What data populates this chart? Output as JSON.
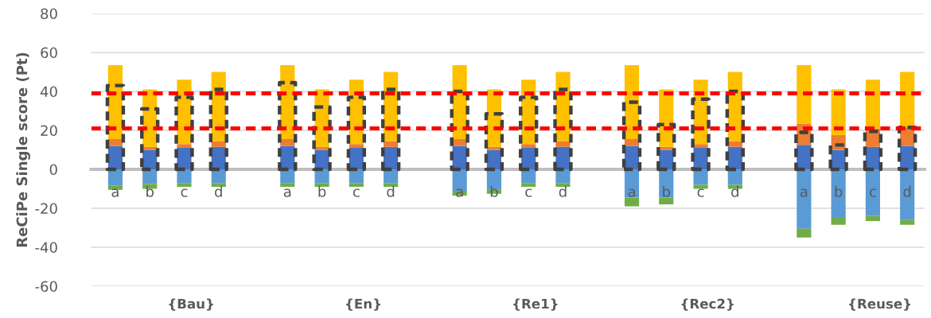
{
  "chart_data": {
    "type": "bar",
    "ylabel": "ReCiPe Single score (Pt)",
    "categories": [
      "a",
      "b",
      "c",
      "d",
      null,
      "a",
      "b",
      "c",
      "d",
      null,
      "a",
      "b",
      "c",
      "d",
      null,
      "a",
      "b",
      "c",
      "d",
      null,
      "a",
      "b",
      "c",
      "d"
    ],
    "series": [
      {
        "color": "#4472c4",
        "base": [
          0,
          0,
          0,
          0,
          null,
          0,
          0,
          0,
          0,
          null,
          0,
          0,
          0,
          0,
          null,
          0,
          0,
          0,
          0,
          null,
          0,
          0,
          0,
          0
        ],
        "values": [
          12,
          10,
          11,
          11.5,
          null,
          12,
          10,
          11,
          11.5,
          null,
          12,
          10,
          11,
          11.5,
          null,
          12,
          10,
          11,
          11.5,
          null,
          12.5,
          10,
          11.5,
          12
        ]
      },
      {
        "color": "#ed7d31",
        "base": [
          12,
          10,
          11,
          11.5,
          null,
          12,
          10,
          11,
          11.5,
          null,
          12,
          10,
          11,
          11.5,
          null,
          12,
          10,
          11,
          11.5,
          null,
          12.5,
          10,
          11.5,
          12
        ],
        "values": [
          3.5,
          1.5,
          2,
          3,
          null,
          3.5,
          1.5,
          2,
          3,
          null,
          3.5,
          1.5,
          2,
          3,
          null,
          3.5,
          1.5,
          2,
          3,
          null,
          11,
          7.5,
          9.5,
          9.5
        ]
      },
      {
        "color": "#ffc000",
        "base": [
          15.5,
          11.5,
          13,
          14.5,
          null,
          15.5,
          11.5,
          13,
          14.5,
          null,
          15.5,
          11.5,
          13,
          14.5,
          null,
          15.5,
          11.5,
          13,
          14.5,
          null,
          23.5,
          17.5,
          21,
          21.5
        ],
        "values": [
          38,
          29.5,
          33,
          35.5,
          null,
          38,
          29.5,
          33,
          35.5,
          null,
          38,
          29.5,
          33,
          35.5,
          null,
          38,
          29.5,
          33,
          35.5,
          null,
          30,
          23.5,
          25,
          28.5
        ]
      },
      {
        "color": "#5b9bd5",
        "base": [
          0,
          0,
          0,
          0,
          null,
          0,
          0,
          0,
          0,
          null,
          0,
          0,
          0,
          0,
          null,
          0,
          0,
          0,
          0,
          null,
          0,
          0,
          0,
          0
        ],
        "values": [
          -8.5,
          -7.5,
          -7,
          -7,
          null,
          -7,
          -7,
          -7,
          -7,
          null,
          -11,
          -10.5,
          -7,
          -7,
          null,
          -14.5,
          -14.5,
          -8,
          -8,
          null,
          -30.5,
          -24.5,
          -24,
          -26
        ]
      },
      {
        "color": "#70ad47",
        "base": [
          -8.5,
          -7.5,
          -7,
          -7,
          null,
          -7,
          -7,
          -7,
          -7,
          null,
          -11,
          -10.5,
          -7,
          -7,
          null,
          -14.5,
          -14.5,
          -8,
          -8,
          null,
          -30.5,
          -24.5,
          -24,
          -26
        ],
        "values": [
          -2,
          -2.5,
          -2,
          -2,
          null,
          -2,
          -2,
          -2,
          -2,
          null,
          -2.5,
          -2,
          -2,
          -2,
          null,
          -4.5,
          -3.5,
          -2,
          -2,
          null,
          -4.5,
          -4,
          -2.5,
          -2.5
        ]
      },
      {
        "color": "#404040",
        "line_style": "dashed",
        "base": [
          0,
          0,
          0,
          0,
          null,
          0,
          0,
          0,
          0,
          null,
          0,
          0,
          0,
          0,
          null,
          0,
          0,
          0,
          0,
          null,
          0,
          0,
          0,
          0
        ],
        "values": [
          43,
          31,
          37,
          41,
          null,
          44.5,
          32,
          37,
          41,
          null,
          40,
          28.5,
          37,
          41,
          null,
          34.5,
          23,
          36,
          40,
          null,
          19,
          12.5,
          19.5,
          21.5
        ]
      }
    ],
    "ylim": [
      -60,
      80
    ],
    "yticks": [
      -60,
      -40,
      -20,
      0,
      20,
      40,
      60,
      80
    ],
    "grid": "y",
    "ref_lines": [
      {
        "axis": "y",
        "value": 39,
        "color": "#ff0000",
        "line_style": "dashed"
      },
      {
        "axis": "y",
        "value": 21,
        "color": "#ff0000",
        "line_style": "dashed"
      }
    ],
    "annotations": [
      "{Bau}",
      "{En}",
      "{Re1}",
      "{Rec2}",
      "{Reuse}"
    ]
  }
}
